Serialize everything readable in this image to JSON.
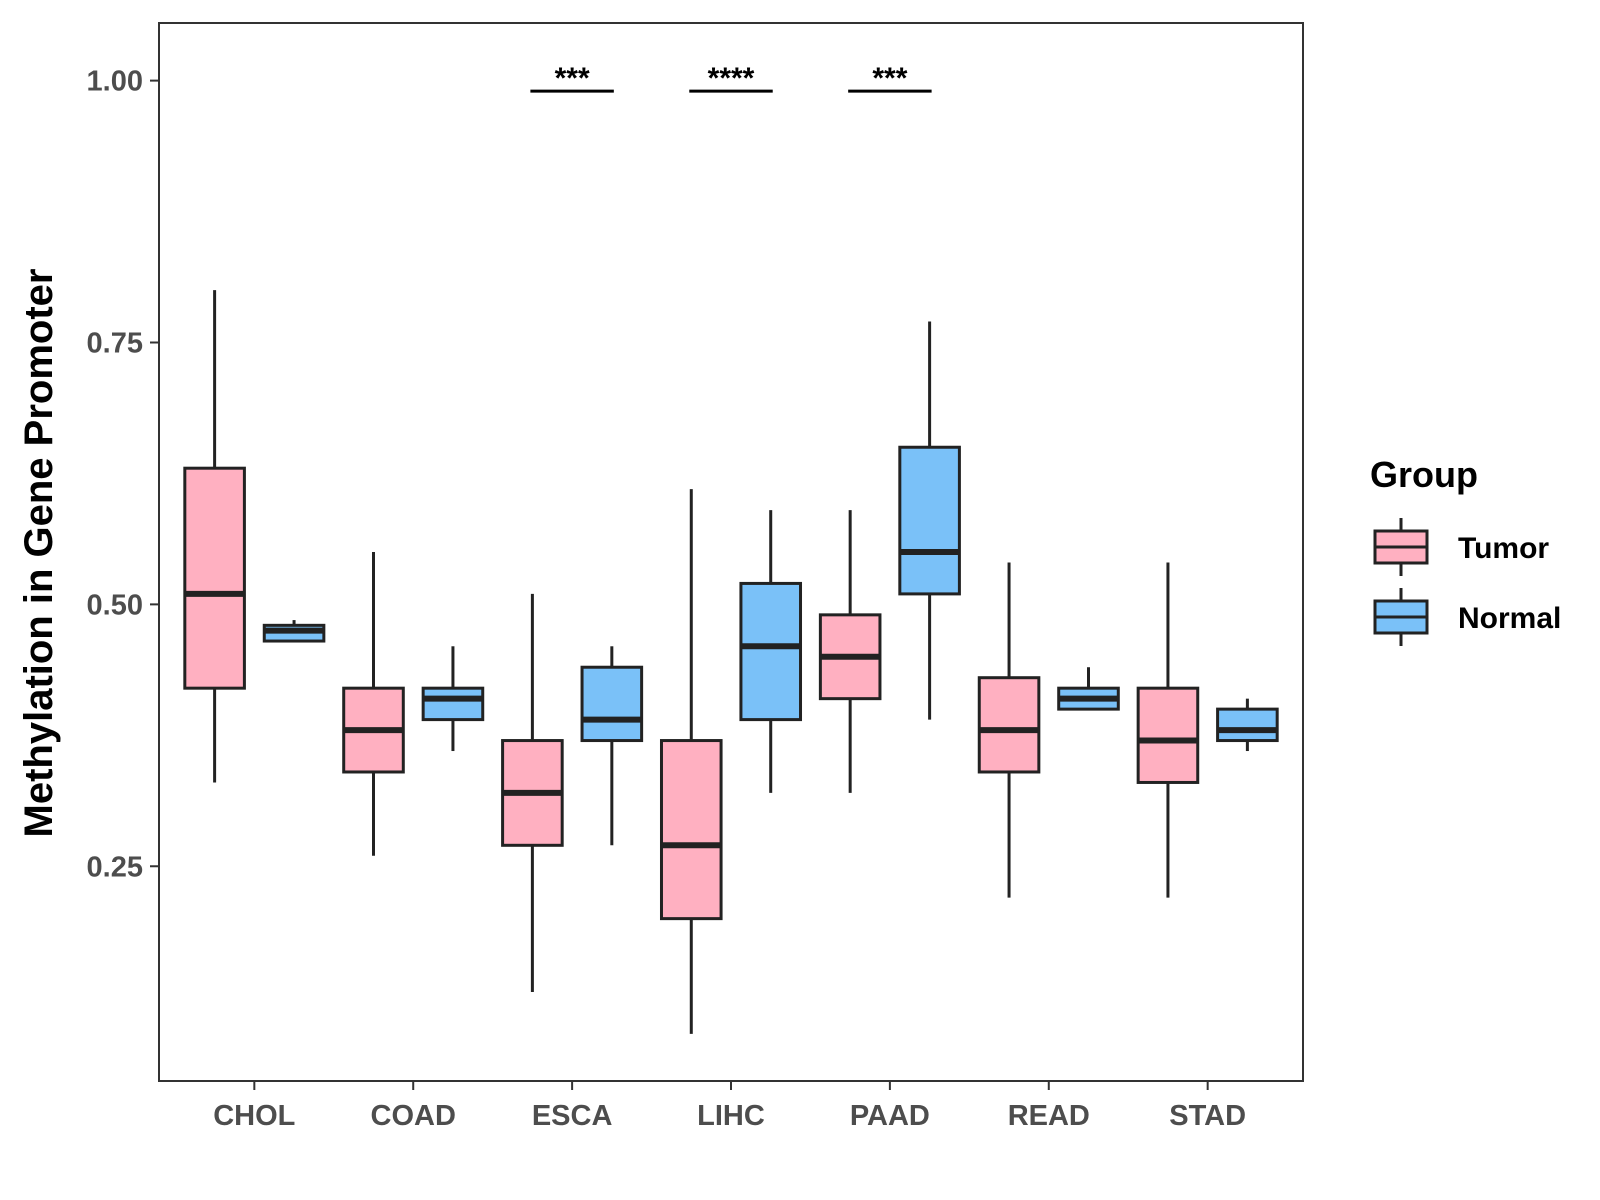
{
  "chart_data": {
    "type": "boxplot",
    "ylabel": "Methylation in Gene Promoter",
    "xlabel": "",
    "ylim": [
      0.045,
      1.055
    ],
    "yticks": [
      0.25,
      0.5,
      0.75,
      1.0
    ],
    "ytick_labels": [
      "0.25",
      "0.50",
      "0.75",
      "1.00"
    ],
    "categories": [
      "CHOL",
      "COAD",
      "ESCA",
      "LIHC",
      "PAAD",
      "READ",
      "STAD"
    ],
    "legend": {
      "title": "Group",
      "position": "right",
      "entries": [
        {
          "name": "Tumor",
          "color": "#FFB0C1"
        },
        {
          "name": "Normal",
          "color": "#7AC1F8"
        }
      ]
    },
    "series": [
      {
        "name": "Tumor",
        "color": "#FFB0C1",
        "boxes": [
          {
            "category": "CHOL",
            "min": 0.33,
            "q1": 0.42,
            "median": 0.51,
            "q3": 0.63,
            "max": 0.8
          },
          {
            "category": "COAD",
            "min": 0.26,
            "q1": 0.34,
            "median": 0.38,
            "q3": 0.42,
            "max": 0.55
          },
          {
            "category": "ESCA",
            "min": 0.13,
            "q1": 0.27,
            "median": 0.32,
            "q3": 0.37,
            "max": 0.51
          },
          {
            "category": "LIHC",
            "min": 0.09,
            "q1": 0.2,
            "median": 0.27,
            "q3": 0.37,
            "max": 0.61
          },
          {
            "category": "PAAD",
            "min": 0.32,
            "q1": 0.41,
            "median": 0.45,
            "q3": 0.49,
            "max": 0.59
          },
          {
            "category": "READ",
            "min": 0.22,
            "q1": 0.34,
            "median": 0.38,
            "q3": 0.43,
            "max": 0.54
          },
          {
            "category": "STAD",
            "min": 0.22,
            "q1": 0.33,
            "median": 0.37,
            "q3": 0.42,
            "max": 0.54
          }
        ]
      },
      {
        "name": "Normal",
        "color": "#7AC1F8",
        "boxes": [
          {
            "category": "CHOL",
            "min": 0.465,
            "q1": 0.465,
            "median": 0.475,
            "q3": 0.48,
            "max": 0.485
          },
          {
            "category": "COAD",
            "min": 0.36,
            "q1": 0.39,
            "median": 0.41,
            "q3": 0.42,
            "max": 0.46
          },
          {
            "category": "ESCA",
            "min": 0.27,
            "q1": 0.37,
            "median": 0.39,
            "q3": 0.44,
            "max": 0.46
          },
          {
            "category": "LIHC",
            "min": 0.32,
            "q1": 0.39,
            "median": 0.46,
            "q3": 0.52,
            "max": 0.59
          },
          {
            "category": "PAAD",
            "min": 0.39,
            "q1": 0.51,
            "median": 0.55,
            "q3": 0.65,
            "max": 0.77
          },
          {
            "category": "READ",
            "min": 0.4,
            "q1": 0.4,
            "median": 0.41,
            "q3": 0.42,
            "max": 0.44
          },
          {
            "category": "STAD",
            "min": 0.36,
            "q1": 0.37,
            "median": 0.38,
            "q3": 0.4,
            "max": 0.41
          }
        ]
      }
    ],
    "annotations": [
      {
        "category": "ESCA",
        "label": "***",
        "y": 0.99
      },
      {
        "category": "LIHC",
        "label": "****",
        "y": 0.99
      },
      {
        "category": "PAAD",
        "label": "***",
        "y": 0.99
      }
    ]
  }
}
